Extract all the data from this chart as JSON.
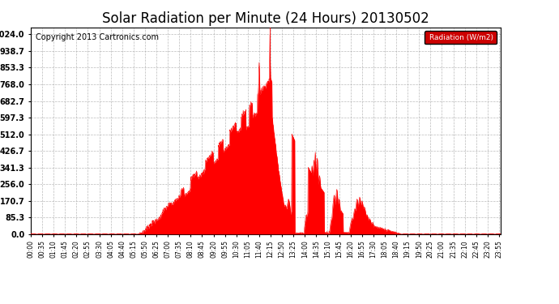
{
  "title": "Solar Radiation per Minute (24 Hours) 20130502",
  "copyright": "Copyright 2013 Cartronics.com",
  "legend_text": "Radiation (W/m2)",
  "yticks": [
    0.0,
    85.3,
    170.7,
    256.0,
    341.3,
    426.7,
    512.0,
    597.3,
    682.7,
    768.0,
    853.3,
    938.7,
    1024.0
  ],
  "ylim": [
    0.0,
    1060.0
  ],
  "fill_color": "#ff0000",
  "bg_color": "#ffffff",
  "grid_color": "#aaaaaa",
  "legend_bg": "#cc0000",
  "title_fontsize": 12,
  "copyright_fontsize": 7,
  "total_minutes": 1440,
  "sunrise_min": 335,
  "sunset_min": 1135,
  "peak_min": 735,
  "peak_val": 800,
  "spike_min": 733,
  "spike_val": 1024,
  "spike2_min": 700,
  "spike2_val": 880
}
